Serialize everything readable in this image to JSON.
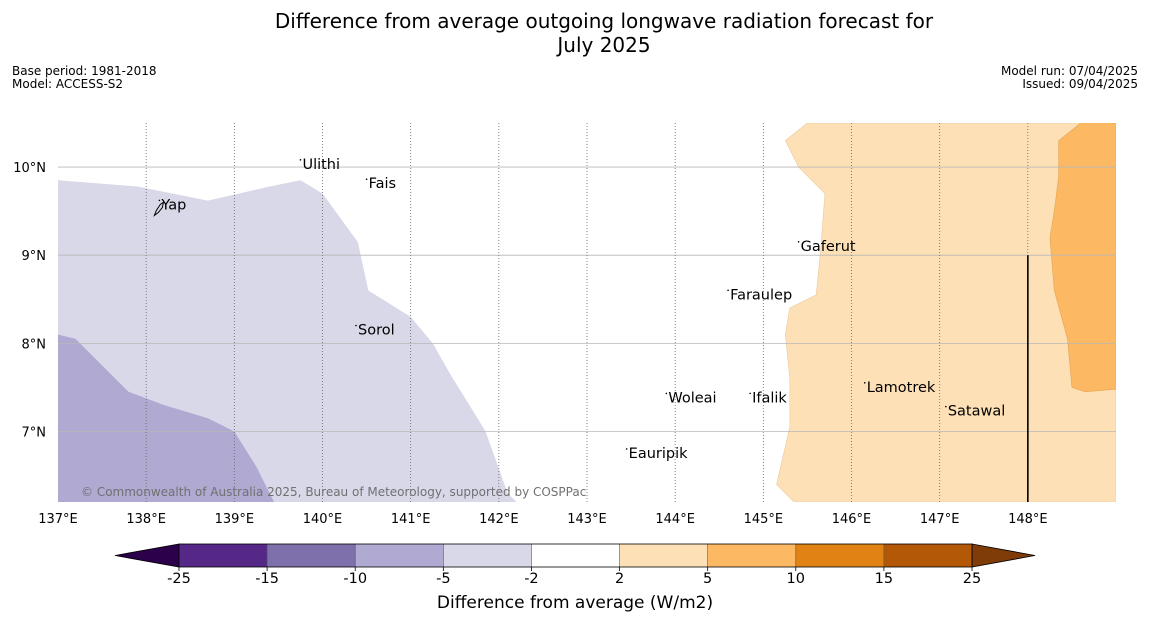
{
  "title_line1": "Difference from average outgoing longwave radiation forecast for",
  "title_line2": "July 2025",
  "base_period": "Base period: 1981-2018",
  "model": "Model: ACCESS-S2",
  "model_run": "Model run: 07/04/2025",
  "issued": "Issued: 09/04/2025",
  "copyright": "© Commonwealth of Australia 2025, Bureau of Meteorology, supported by COSPPac",
  "map": {
    "lon_range": [
      137,
      149
    ],
    "lat_range": [
      6.2,
      10.5
    ],
    "lon_ticks": [
      137,
      138,
      139,
      140,
      141,
      142,
      143,
      144,
      145,
      146,
      147,
      148
    ],
    "lon_tick_labels": [
      "137°E",
      "138°E",
      "139°E",
      "140°E",
      "141°E",
      "142°E",
      "143°E",
      "144°E",
      "145°E",
      "146°E",
      "147°E",
      "148°E"
    ],
    "lat_ticks": [
      7,
      8,
      9,
      10
    ],
    "lat_tick_labels": [
      "7°N",
      "8°N",
      "9°N",
      "10°N"
    ],
    "places": [
      {
        "name": "Ulithi",
        "lon": 139.75,
        "lat": 9.98
      },
      {
        "name": "Fais",
        "lon": 140.5,
        "lat": 9.76
      },
      {
        "name": "Yap",
        "lon": 138.15,
        "lat": 9.52
      },
      {
        "name": "Gaferut",
        "lon": 145.4,
        "lat": 9.05
      },
      {
        "name": "Faraulep",
        "lon": 144.6,
        "lat": 8.5
      },
      {
        "name": "Sorol",
        "lon": 140.38,
        "lat": 8.1
      },
      {
        "name": "Woleai",
        "lon": 143.9,
        "lat": 7.33
      },
      {
        "name": "Ifalik",
        "lon": 144.85,
        "lat": 7.33
      },
      {
        "name": "Lamotrek",
        "lon": 146.15,
        "lat": 7.45
      },
      {
        "name": "Satawal",
        "lon": 147.07,
        "lat": 7.18
      },
      {
        "name": "Eauripik",
        "lon": 143.45,
        "lat": 6.7
      }
    ],
    "regions": [
      {
        "category": "-5 to -2",
        "color": "#d8d8e9",
        "polygon": [
          [
            137,
            9.85
          ],
          [
            137.9,
            9.78
          ],
          [
            138.7,
            9.62
          ],
          [
            139.4,
            9.78
          ],
          [
            139.75,
            9.85
          ],
          [
            140.0,
            9.7
          ],
          [
            140.4,
            9.15
          ],
          [
            140.52,
            8.6
          ],
          [
            141.0,
            8.3
          ],
          [
            141.25,
            8.0
          ],
          [
            141.45,
            7.65
          ],
          [
            141.85,
            7.0
          ],
          [
            142.1,
            6.3
          ],
          [
            142.2,
            6.2
          ],
          [
            137,
            6.2
          ]
        ]
      },
      {
        "category": "-10 to -5",
        "color": "#b0a9d2",
        "polygon": [
          [
            137,
            8.1
          ],
          [
            137.2,
            8.05
          ],
          [
            137.5,
            7.75
          ],
          [
            137.8,
            7.45
          ],
          [
            138.2,
            7.3
          ],
          [
            138.7,
            7.15
          ],
          [
            139.0,
            7.0
          ],
          [
            139.25,
            6.6
          ],
          [
            139.45,
            6.2
          ],
          [
            137,
            6.2
          ]
        ]
      },
      {
        "category": "2 to 5",
        "color": "#fee0b6",
        "polygon": [
          [
            145.5,
            10.5
          ],
          [
            149,
            10.5
          ],
          [
            149,
            6.2
          ],
          [
            145.35,
            6.2
          ],
          [
            145.15,
            6.4
          ],
          [
            145.3,
            7.05
          ],
          [
            145.3,
            7.6
          ],
          [
            145.25,
            8.1
          ],
          [
            145.3,
            8.4
          ],
          [
            145.6,
            8.55
          ],
          [
            145.65,
            9.05
          ],
          [
            145.7,
            9.7
          ],
          [
            145.4,
            10.0
          ],
          [
            145.25,
            10.3
          ]
        ]
      },
      {
        "category": "5 to 10",
        "color": "#fdb863",
        "polygon": [
          [
            149,
            10.5
          ],
          [
            148.6,
            10.5
          ],
          [
            148.35,
            10.3
          ],
          [
            148.35,
            9.9
          ],
          [
            148.3,
            9.5
          ],
          [
            148.25,
            9.2
          ],
          [
            148.3,
            8.6
          ],
          [
            148.45,
            8.05
          ],
          [
            148.5,
            7.5
          ],
          [
            148.65,
            7.45
          ],
          [
            149,
            7.48
          ]
        ]
      }
    ],
    "track": {
      "lon": 148,
      "lat_from": 6.2,
      "lat_to": 9.0
    }
  },
  "colorbar": {
    "label": "Difference from average (W/m2)",
    "ticks": [
      "-25",
      "-15",
      "-10",
      "-5",
      "-2",
      "2",
      "5",
      "10",
      "15",
      "25"
    ],
    "colors": [
      "#552887",
      "#7e70aa",
      "#b0a9d2",
      "#d8d8e9",
      "#ffffff",
      "#fee0b6",
      "#fdb863",
      "#e08214",
      "#b35806"
    ],
    "extend_low_color": "#2d004b",
    "extend_high_color": "#7f3b08"
  }
}
